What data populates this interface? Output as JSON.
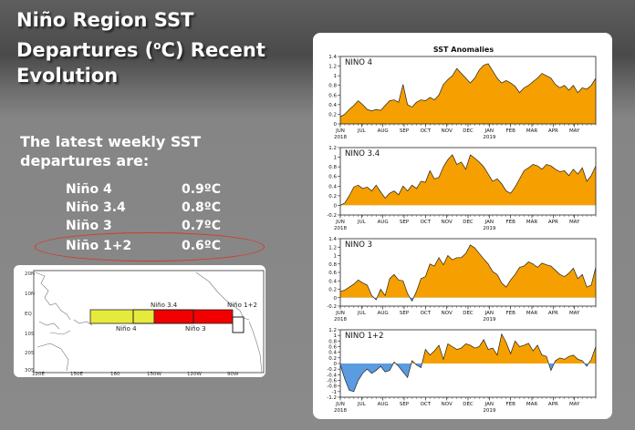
{
  "slide": {
    "title_line1": "Niño Region SST",
    "title_line2_pre": "Departures (",
    "title_sup": "o",
    "title_line2_post": "C) Recent",
    "title_line3": "Evolution",
    "subtitle_line1": "The latest weekly SST",
    "subtitle_line2": "departures are:"
  },
  "latest": [
    {
      "region": "Niño 4",
      "value": "0.9ºC"
    },
    {
      "region": "Niño 3.4",
      "value": "0.8ºC"
    },
    {
      "region": "Niño 3",
      "value": "0.7ºC"
    },
    {
      "region": "Niño 1+2",
      "value": "0.6ºC"
    }
  ],
  "colors": {
    "positive": "#f5a000",
    "negative": "#5b9bdf",
    "highlight": "#d23a2a",
    "nino4": "#e6ea3c",
    "nino3": "#f20000"
  },
  "map": {
    "lat_labels": [
      "20N",
      "10N",
      "EQ",
      "10S",
      "20S",
      "30S"
    ],
    "lon_labels": [
      "120E",
      "150E",
      "180",
      "150W",
      "120W",
      "90W"
    ],
    "region_labels": {
      "nino34": "Niño 3.4",
      "nino12": "Niño 1+2",
      "nino4": "Niño 4",
      "nino3": "Niño 3"
    }
  },
  "chart_data": {
    "type": "area",
    "title": "SST Anomalies",
    "month_ticks": [
      "JUN",
      "JUL",
      "AUG",
      "SEP",
      "OCT",
      "NOV",
      "DEC",
      "JAN",
      "FEB",
      "MAR",
      "APR",
      "MAY"
    ],
    "year_labels": [
      "2018",
      "2019"
    ],
    "panels": [
      {
        "name": "NINO 4",
        "ylim": [
          0,
          1.4
        ],
        "yticks": [
          "1.4",
          "1.2",
          "1",
          "0.8",
          "0.6",
          "0.4",
          "0.2",
          "0"
        ],
        "values": [
          0.15,
          0.2,
          0.3,
          0.38,
          0.48,
          0.4,
          0.3,
          0.27,
          0.3,
          0.28,
          0.38,
          0.48,
          0.5,
          0.45,
          0.82,
          0.4,
          0.35,
          0.45,
          0.5,
          0.48,
          0.55,
          0.5,
          0.6,
          0.82,
          0.92,
          1.0,
          1.15,
          1.05,
          0.95,
          0.85,
          0.95,
          1.12,
          1.22,
          1.25,
          1.1,
          0.95,
          0.85,
          0.9,
          0.85,
          0.78,
          0.65,
          0.75,
          0.8,
          0.88,
          0.95,
          1.05,
          1.0,
          0.95,
          0.82,
          0.75,
          0.8,
          0.7,
          0.8,
          0.65,
          0.75,
          0.72,
          0.8,
          0.95
        ]
      },
      {
        "name": "NINO 3.4",
        "ylim": [
          -0.2,
          1.2
        ],
        "yticks": [
          "1.2",
          "1",
          "0.8",
          "0.6",
          "0.4",
          "0.2",
          "0",
          "-0.2"
        ],
        "values": [
          0.0,
          0.05,
          0.2,
          0.38,
          0.42,
          0.35,
          0.38,
          0.3,
          0.42,
          0.28,
          0.15,
          0.25,
          0.3,
          0.22,
          0.4,
          0.3,
          0.42,
          0.35,
          0.5,
          0.48,
          0.72,
          0.55,
          0.58,
          0.8,
          0.95,
          1.05,
          0.85,
          0.9,
          0.75,
          1.05,
          0.98,
          0.9,
          0.8,
          0.65,
          0.5,
          0.55,
          0.45,
          0.3,
          0.25,
          0.38,
          0.55,
          0.72,
          0.78,
          0.85,
          0.82,
          0.75,
          0.85,
          0.82,
          0.75,
          0.7,
          0.72,
          0.62,
          0.75,
          0.65,
          0.78,
          0.5,
          0.62,
          0.82
        ]
      },
      {
        "name": "NINO 3",
        "ylim": [
          -0.2,
          1.4
        ],
        "yticks": [
          "1.4",
          "1.2",
          "1",
          "0.8",
          "0.6",
          "0.4",
          "0.2",
          "0",
          "-0.2"
        ],
        "values": [
          0.15,
          0.18,
          0.25,
          0.32,
          0.42,
          0.35,
          0.3,
          0.05,
          -0.05,
          0.2,
          0.05,
          0.45,
          0.55,
          0.42,
          0.4,
          0.1,
          -0.08,
          0.15,
          0.45,
          0.5,
          0.8,
          0.75,
          0.95,
          0.78,
          1.0,
          0.9,
          0.95,
          0.95,
          1.05,
          1.25,
          1.18,
          1.05,
          0.92,
          0.8,
          0.62,
          0.55,
          0.35,
          0.25,
          0.42,
          0.55,
          0.72,
          0.75,
          0.85,
          0.8,
          0.72,
          0.82,
          0.78,
          0.75,
          0.65,
          0.55,
          0.5,
          0.58,
          0.7,
          0.45,
          0.55,
          0.25,
          0.3,
          0.72
        ]
      },
      {
        "name": "NINO 1+2",
        "ylim": [
          -1.2,
          1.2
        ],
        "yticks": [
          "1.2",
          "1",
          "0.8",
          "0.6",
          "0.4",
          "0.2",
          "0",
          "-0.2",
          "-0.4",
          "-0.6",
          "-0.8",
          "-1",
          "-1.2"
        ],
        "values": [
          -0.05,
          -0.55,
          -0.95,
          -1.0,
          -0.6,
          -0.35,
          -0.2,
          -0.35,
          -0.25,
          -0.1,
          -0.3,
          -0.25,
          0.05,
          -0.1,
          -0.3,
          -0.5,
          0.1,
          -0.05,
          -0.15,
          0.5,
          0.3,
          0.45,
          0.65,
          0.15,
          0.7,
          0.6,
          0.5,
          0.55,
          0.7,
          0.65,
          0.55,
          0.6,
          0.85,
          0.5,
          0.55,
          0.3,
          1.05,
          0.75,
          0.35,
          0.8,
          0.6,
          0.65,
          0.72,
          0.45,
          0.65,
          0.3,
          0.25,
          -0.25,
          0.1,
          0.2,
          0.15,
          0.25,
          0.3,
          0.15,
          0.1,
          -0.1,
          0.15,
          0.6
        ]
      }
    ]
  }
}
